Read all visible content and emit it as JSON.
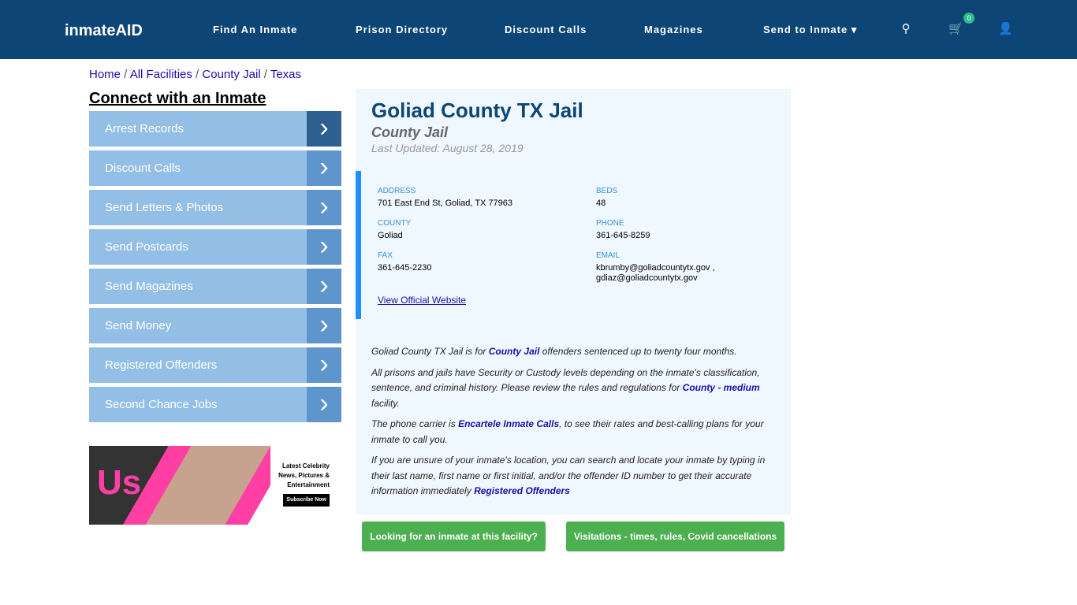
{
  "nav": {
    "logo": "inmateAID",
    "items": [
      "Find An Inmate",
      "Prison Directory",
      "Discount Calls",
      "Magazines",
      "Send to Inmate ▾"
    ],
    "cart_count": "0"
  },
  "breadcrumb": [
    "Home",
    "All Facilities",
    "County Jail",
    "Texas"
  ],
  "sidebar": {
    "title": "Connect with an Inmate",
    "items": [
      "Arrest Records",
      "Discount Calls",
      "Send Letters & Photos",
      "Send Postcards",
      "Send Magazines",
      "Send Money",
      "Registered Offenders",
      "Second Chance Jobs"
    ]
  },
  "ad": {
    "brand": "Us",
    "headline": "Latest Celebrity News, Pictures & Entertainment",
    "cta": "Subscribe Now"
  },
  "facility": {
    "name": "Goliad County TX Jail",
    "type": "County Jail",
    "updated": "Last Updated: August 28, 2019",
    "address_label": "ADDRESS",
    "address": "701 East End St, Goliad, TX 77963",
    "beds_label": "BEDS",
    "beds": "48",
    "county_label": "COUNTY",
    "county": "Goliad",
    "phone_label": "PHONE",
    "phone": "361-645-8259",
    "fax_label": "FAX",
    "fax": "361-645-2230",
    "email_label": "EMAIL",
    "email1": "kbrumby@goliadcountytx.gov ,",
    "email2": "gdiaz@goliadcountytx.gov",
    "website": "View Official Website"
  },
  "desc": {
    "p1a": "Goliad County TX Jail is for ",
    "p1link": "County Jail",
    "p1b": " offenders sentenced up to twenty four months.",
    "p2a": "All prisons and jails have Security or Custody levels depending on the inmate's classification, sentence, and criminal history. Please review the rules and regulations for ",
    "p2link": "County - medium",
    "p2b": " facility.",
    "p3a": "The phone carrier is ",
    "p3link": "Encartele Inmate Calls",
    "p3b": ", to see their rates and best-calling plans for your inmate to call you.",
    "p4a": "If you are unsure of your inmate's location, you can search and locate your inmate by typing in their last name, first name or first initial, and/or the offender ID number to get their accurate information immediately ",
    "p4link": "Registered Offenders"
  },
  "buttons": {
    "looking": "Looking for an inmate at this facility?",
    "visit": "Visitations - times, rules, Covid cancellations"
  }
}
